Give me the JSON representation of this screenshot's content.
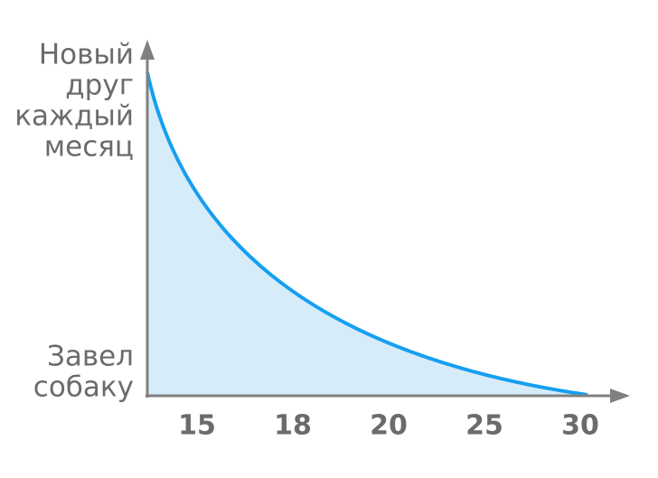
{
  "y_axis": {
    "top_label": [
      "Новый",
      "друг",
      "каждый",
      "месяц"
    ],
    "bottom_label": [
      "Завел",
      "собаку"
    ]
  },
  "x_axis": {
    "labels": [
      "15",
      "18",
      "20",
      "25",
      "30"
    ]
  }
}
